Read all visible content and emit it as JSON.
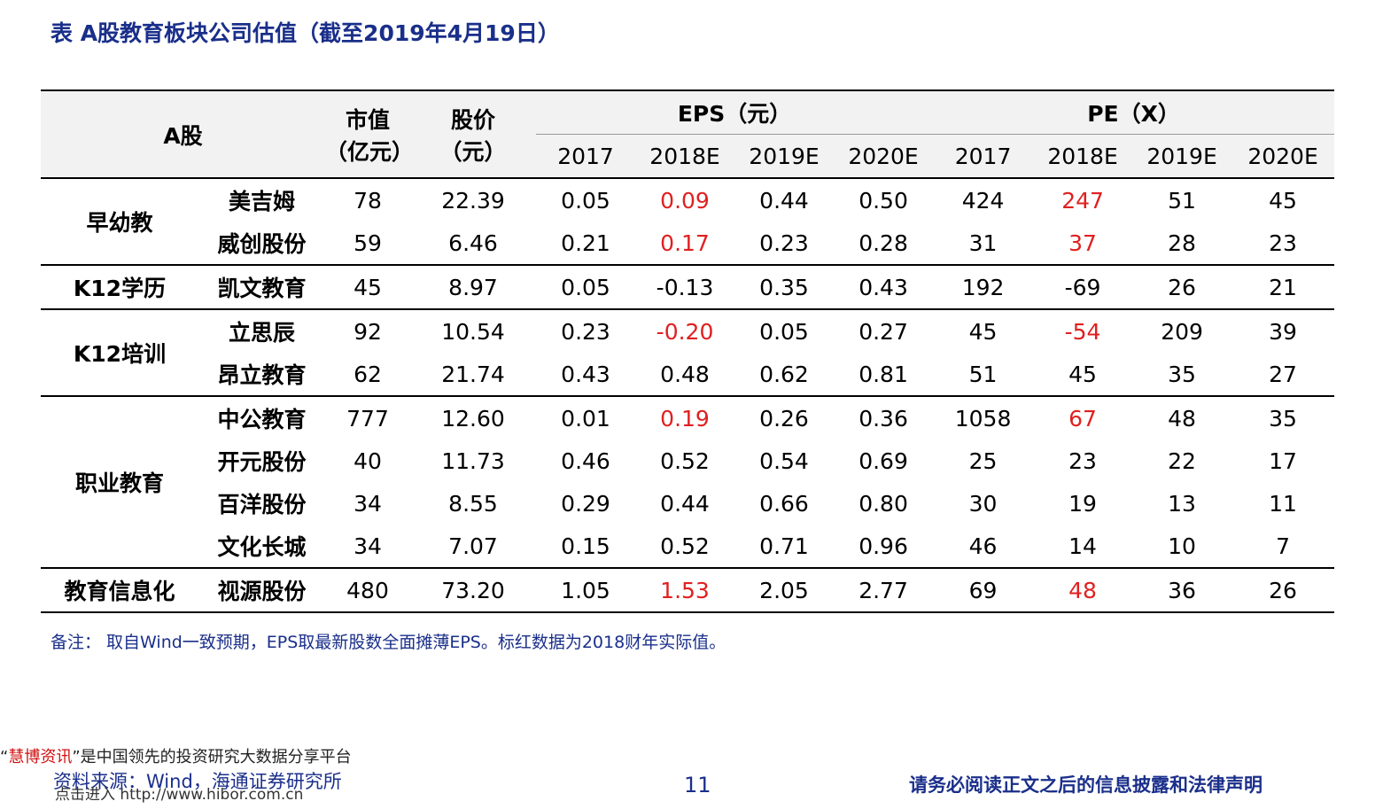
{
  "title": "表  A股教育板块公司估值（截至2019年4月19日）",
  "header": {
    "stock_label": "A股",
    "mktcap_line1": "市值",
    "mktcap_line2": "（亿元）",
    "price_line1": "股价",
    "price_line2": "（元）",
    "eps_group": "EPS（元）",
    "pe_group": "PE（X）",
    "years": [
      "2017",
      "2018E",
      "2019E",
      "2020E"
    ]
  },
  "rows": [
    {
      "cat": "早幼教",
      "name": "美吉姆",
      "mktcap": "78",
      "price": "22.39",
      "eps": [
        "0.05",
        "0.09",
        "0.44",
        "0.50"
      ],
      "pe": [
        "424",
        "247",
        "51",
        "45"
      ]
    },
    {
      "cat": "",
      "name": "威创股份",
      "mktcap": "59",
      "price": "6.46",
      "eps": [
        "0.21",
        "0.17",
        "0.23",
        "0.28"
      ],
      "pe": [
        "31",
        "37",
        "28",
        "23"
      ]
    },
    {
      "cat": "K12学历",
      "name": "凯文教育",
      "mktcap": "45",
      "price": "8.97",
      "eps": [
        "0.05",
        "-0.13",
        "0.35",
        "0.43"
      ],
      "pe": [
        "192",
        "-69",
        "26",
        "21"
      ]
    },
    {
      "cat": "K12培训",
      "name": "立思辰",
      "mktcap": "92",
      "price": "10.54",
      "eps": [
        "0.23",
        "-0.20",
        "0.05",
        "0.27"
      ],
      "pe": [
        "45",
        "-54",
        "209",
        "39"
      ]
    },
    {
      "cat": "",
      "name": "昂立教育",
      "mktcap": "62",
      "price": "21.74",
      "eps": [
        "0.43",
        "0.48",
        "0.62",
        "0.81"
      ],
      "pe": [
        "51",
        "45",
        "35",
        "27"
      ]
    },
    {
      "cat": "职业教育",
      "name": "中公教育",
      "mktcap": "777",
      "price": "12.60",
      "eps": [
        "0.01",
        "0.19",
        "0.26",
        "0.36"
      ],
      "pe": [
        "1058",
        "67",
        "48",
        "35"
      ]
    },
    {
      "cat": "",
      "name": "开元股份",
      "mktcap": "40",
      "price": "11.73",
      "eps": [
        "0.46",
        "0.52",
        "0.54",
        "0.69"
      ],
      "pe": [
        "25",
        "23",
        "22",
        "17"
      ]
    },
    {
      "cat": "",
      "name": "百洋股份",
      "mktcap": "34",
      "price": "8.55",
      "eps": [
        "0.29",
        "0.44",
        "0.66",
        "0.80"
      ],
      "pe": [
        "30",
        "19",
        "13",
        "11"
      ]
    },
    {
      "cat": "",
      "name": "文化长城",
      "mktcap": "34",
      "price": "7.07",
      "eps": [
        "0.15",
        "0.52",
        "0.71",
        "0.96"
      ],
      "pe": [
        "46",
        "14",
        "10",
        "7"
      ]
    },
    {
      "cat": "教育信息化",
      "name": "视源股份",
      "mktcap": "480",
      "price": "73.20",
      "eps": [
        "1.05",
        "1.53",
        "2.05",
        "2.77"
      ],
      "pe": [
        "69",
        "48",
        "36",
        "26"
      ]
    }
  ],
  "highlight_color": "#e02020",
  "note": "备注：  取自Wind一致预期，EPS取最新股数全面摊薄EPS。标红数据为2018财年实际值。",
  "watermark": {
    "open_quote": "“",
    "brand": "慧博资讯",
    "rest": "”是中国领先的投资研究大数据分享平台",
    "line2": "点击进入",
    "url": "http://www.hibor.com.cn"
  },
  "footer": {
    "source": "资料来源：Wind，海通证券研究所",
    "page": "11",
    "legal": "请务必阅读正文之后的信息披露和法律声明"
  }
}
